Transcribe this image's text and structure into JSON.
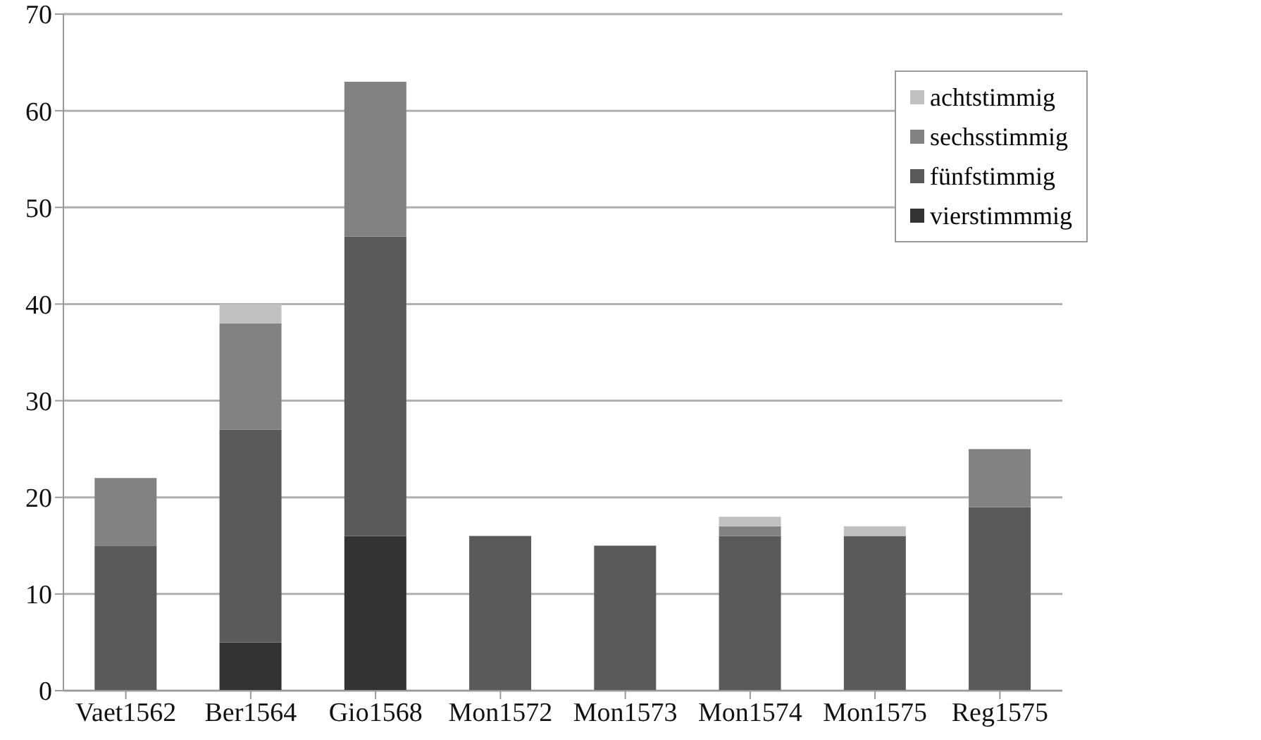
{
  "chart_data": {
    "type": "bar",
    "stacked": true,
    "categories": [
      "Vaet1562",
      "Ber1564",
      "Gio1568",
      "Mon1572",
      "Mon1573",
      "Mon1574",
      "Mon1575",
      "Reg1575"
    ],
    "series": [
      {
        "name": "vierstimmmig",
        "color": "#333333",
        "values": [
          0,
          5,
          16,
          0,
          0,
          0,
          0,
          0
        ]
      },
      {
        "name": "fünfstimmig",
        "color": "#5a5a5a",
        "values": [
          15,
          22,
          31,
          16,
          15,
          16,
          16,
          19
        ]
      },
      {
        "name": "sechsstimmig",
        "color": "#828282",
        "values": [
          7,
          11,
          16,
          0,
          0,
          1,
          0,
          6
        ]
      },
      {
        "name": "achtstimmig",
        "color": "#c0c0c0",
        "values": [
          0,
          2,
          0,
          0,
          0,
          1,
          1,
          0
        ]
      }
    ],
    "ylim": [
      0,
      70
    ],
    "yticks": [
      0,
      10,
      20,
      30,
      40,
      50,
      60,
      70
    ],
    "grid": "y",
    "legend": "top right"
  }
}
